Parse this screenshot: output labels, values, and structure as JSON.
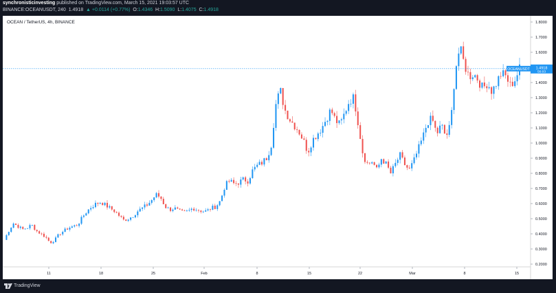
{
  "header": {
    "author": "synchronisticinvesting",
    "published": " published on TradingView.com, March 15, 2021 19:03:57 UTC",
    "symbol_line": "BINANCE:OCEANUSDT, 240",
    "last": "1.4918",
    "change": "+0.0114 (+0.77%)",
    "o_label": "O:",
    "o_val": "1.4346",
    "h_label": "H:",
    "h_val": "1.5090",
    "l_label": "L:",
    "l_val": "1.4075",
    "c_label": "C:",
    "c_val": "1.4918"
  },
  "chart_title": "OCEAN / TetherUS, 4h, BINANCE",
  "footer": {
    "brand": "TradingView"
  },
  "colors": {
    "up": "#2196f3",
    "down": "#ef5350",
    "price_line": "#2196f3",
    "background": "#ffffff",
    "frame": "#131722"
  },
  "chart_data": {
    "type": "candlestick",
    "title": "OCEAN / TetherUS, 4h, BINANCE",
    "x_tick_labels": [
      "11",
      "18",
      "25",
      "Feb",
      "8",
      "15",
      "22",
      "Mar",
      "8",
      "15"
    ],
    "y_tick_labels": [
      "0.2000",
      "0.3000",
      "0.4000",
      "0.5000",
      "0.6000",
      "0.7000",
      "0.8000",
      "0.9000",
      "1.0000",
      "1.1000",
      "1.2000",
      "1.3000",
      "1.4000",
      "1.5000",
      "1.6000",
      "1.7000",
      "1.8000"
    ],
    "ylim": [
      0.2,
      1.8
    ],
    "last_price": 1.4918,
    "last_price_label": "OCEANUSDT",
    "last_price_countdown": "56:03",
    "grid": false,
    "series": [
      {
        "values": [
          0.36,
          0.42,
          0.47,
          0.45,
          0.43,
          0.44,
          0.46,
          0.42,
          0.4,
          0.38,
          0.34,
          0.36,
          0.4,
          0.42,
          0.44,
          0.45,
          0.46,
          0.51,
          0.55,
          0.58,
          0.6,
          0.61,
          0.59,
          0.57,
          0.55,
          0.52,
          0.49,
          0.5,
          0.52,
          0.55,
          0.57,
          0.59,
          0.62,
          0.66,
          0.64,
          0.58,
          0.56,
          0.57,
          0.55,
          0.54,
          0.55,
          0.57,
          0.56,
          0.55,
          0.55,
          0.57,
          0.58,
          0.62,
          0.72,
          0.75,
          0.73,
          0.74,
          0.76,
          0.75,
          0.82,
          0.85,
          0.87,
          0.9,
          0.98,
          1.25,
          1.35,
          1.22,
          1.16,
          1.12,
          1.08,
          1.02,
          0.94,
          1.02,
          1.06,
          1.1,
          1.16,
          1.22,
          1.15,
          1.12,
          1.2,
          1.28,
          1.3,
          1.12,
          0.92,
          0.86,
          0.88,
          0.82,
          0.9,
          0.86,
          0.8,
          0.86,
          0.92,
          0.86,
          0.82,
          0.88,
          0.96,
          1.04,
          1.14,
          1.16,
          1.06,
          1.12,
          1.04,
          1.12,
          1.48,
          1.63,
          1.52,
          1.44,
          1.46,
          1.42,
          1.36,
          1.4,
          1.34,
          1.4,
          1.46,
          1.44,
          1.38,
          1.42,
          1.49
        ]
      }
    ]
  }
}
